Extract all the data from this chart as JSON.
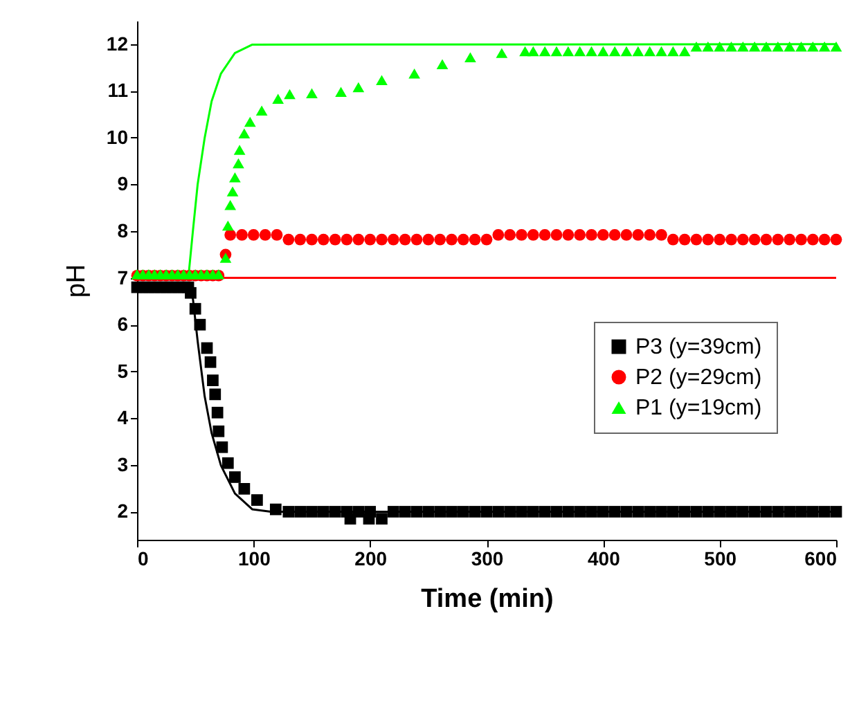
{
  "chart_data": {
    "type": "scatter",
    "xlabel": "Time (min)",
    "ylabel": "pH",
    "xlim": [
      0,
      600
    ],
    "xticks": [
      0,
      100,
      200,
      300,
      400,
      500,
      600
    ],
    "ylim": [
      1.4,
      12.5
    ],
    "yticks": [
      2,
      3,
      4,
      5,
      6,
      7,
      8,
      9,
      10,
      11,
      12
    ],
    "grid": false,
    "legend": "right",
    "series": [
      {
        "type": "line",
        "color": "#ff0000",
        "marker": "none",
        "line_style": "solid",
        "x": [
          0,
          600
        ],
        "values": [
          7.0,
          7.0
        ]
      },
      {
        "type": "line",
        "color": "#000000",
        "marker": "none",
        "line_style": "solid",
        "x": [
          0,
          45,
          48,
          52,
          58,
          64,
          72,
          84,
          99,
          115,
          600
        ],
        "values": [
          6.9,
          6.9,
          6.54,
          5.65,
          4.47,
          3.68,
          2.99,
          2.39,
          2.05,
          2.0,
          2.0
        ]
      },
      {
        "type": "line",
        "color": "#00ff00",
        "marker": "none",
        "line_style": "solid",
        "x": [
          0,
          44,
          48,
          52,
          58,
          64,
          72,
          84,
          99,
          600
        ],
        "values": [
          7.0,
          7.0,
          8.02,
          9.0,
          9.99,
          10.78,
          11.37,
          11.81,
          11.99,
          12.0
        ]
      },
      {
        "name": "P3 (y=39cm)",
        "color": "#000000",
        "marker": "square",
        "x": [
          0,
          5,
          10,
          15,
          20,
          25,
          30,
          35,
          40,
          44,
          46,
          50,
          54,
          60,
          63,
          65,
          67,
          69,
          70,
          73,
          78,
          84,
          92,
          103,
          119,
          130,
          140,
          150,
          160,
          170,
          180,
          183,
          190,
          199,
          200,
          210,
          220,
          230,
          240,
          250,
          260,
          270,
          280,
          290,
          300,
          310,
          320,
          330,
          340,
          350,
          360,
          370,
          380,
          390,
          400,
          410,
          420,
          430,
          440,
          450,
          460,
          470,
          480,
          490,
          500,
          510,
          520,
          530,
          540,
          550,
          560,
          570,
          580,
          590,
          600
        ],
        "values": [
          6.8,
          6.8,
          6.8,
          6.8,
          6.8,
          6.8,
          6.8,
          6.8,
          6.8,
          6.8,
          6.68,
          6.34,
          6.0,
          5.5,
          5.2,
          4.81,
          4.51,
          4.12,
          3.72,
          3.38,
          3.04,
          2.74,
          2.49,
          2.25,
          2.05,
          2.0,
          2.0,
          2.0,
          2.0,
          2.0,
          2.0,
          1.85,
          2.0,
          1.85,
          2.0,
          1.85,
          2.0,
          2.0,
          2.0,
          2.0,
          2.0,
          2.0,
          2.0,
          2.0,
          2.0,
          2.0,
          2.0,
          2.0,
          2.0,
          2.0,
          2.0,
          2.0,
          2.0,
          2.0,
          2.0,
          2.0,
          2.0,
          2.0,
          2.0,
          2.0,
          2.0,
          2.0,
          2.0,
          2.0,
          2.0,
          2.0,
          2.0,
          2.0,
          2.0,
          2.0,
          2.0,
          2.0,
          2.0,
          2.0,
          2.0
        ]
      },
      {
        "name": "P2 (y=29cm)",
        "color": "#ff0000",
        "marker": "circle",
        "x": [
          0,
          5,
          10,
          15,
          20,
          25,
          30,
          35,
          40,
          45,
          50,
          55,
          60,
          65,
          70,
          76,
          80,
          90,
          100,
          110,
          120,
          130,
          140,
          150,
          160,
          170,
          180,
          190,
          200,
          210,
          220,
          230,
          240,
          250,
          260,
          270,
          280,
          290,
          300,
          310,
          320,
          330,
          340,
          350,
          360,
          370,
          380,
          390,
          400,
          410,
          420,
          430,
          440,
          450,
          460,
          470,
          480,
          490,
          500,
          510,
          520,
          530,
          540,
          550,
          560,
          570,
          580,
          590,
          600
        ],
        "values": [
          7.05,
          7.05,
          7.05,
          7.05,
          7.05,
          7.05,
          7.05,
          7.05,
          7.05,
          7.05,
          7.05,
          7.05,
          7.05,
          7.05,
          7.05,
          7.5,
          7.92,
          7.92,
          7.92,
          7.92,
          7.92,
          7.82,
          7.82,
          7.82,
          7.82,
          7.82,
          7.82,
          7.82,
          7.82,
          7.82,
          7.82,
          7.82,
          7.82,
          7.82,
          7.82,
          7.82,
          7.82,
          7.82,
          7.82,
          7.92,
          7.92,
          7.92,
          7.92,
          7.92,
          7.92,
          7.92,
          7.92,
          7.92,
          7.92,
          7.92,
          7.92,
          7.92,
          7.92,
          7.92,
          7.82,
          7.82,
          7.82,
          7.82,
          7.82,
          7.82,
          7.82,
          7.82,
          7.82,
          7.82,
          7.82,
          7.82,
          7.82,
          7.82,
          7.82
        ]
      },
      {
        "name": "P1 (y=19cm)",
        "color": "#00ff00",
        "marker": "triangle",
        "x": [
          0,
          5,
          10,
          15,
          20,
          25,
          30,
          35,
          40,
          45,
          50,
          55,
          60,
          65,
          70,
          76,
          78,
          80,
          82,
          84,
          87,
          88,
          92,
          97,
          107,
          121,
          131,
          150,
          175,
          190,
          210,
          238,
          262,
          286,
          313,
          333,
          340,
          350,
          360,
          370,
          380,
          390,
          400,
          410,
          420,
          430,
          440,
          450,
          460,
          470,
          480,
          490,
          500,
          510,
          520,
          530,
          540,
          550,
          560,
          570,
          580,
          590,
          600
        ],
        "values": [
          7.08,
          7.08,
          7.08,
          7.08,
          7.08,
          7.08,
          7.08,
          7.08,
          7.08,
          7.08,
          7.08,
          7.08,
          7.08,
          7.08,
          7.08,
          7.43,
          8.12,
          8.56,
          8.85,
          9.15,
          9.45,
          9.74,
          10.09,
          10.34,
          10.58,
          10.83,
          10.93,
          10.95,
          10.98,
          11.08,
          11.23,
          11.37,
          11.57,
          11.72,
          11.81,
          11.85,
          11.85,
          11.85,
          11.85,
          11.85,
          11.85,
          11.85,
          11.85,
          11.85,
          11.85,
          11.85,
          11.85,
          11.85,
          11.85,
          11.85,
          11.95,
          11.95,
          11.95,
          11.95,
          11.95,
          11.95,
          11.95,
          11.95,
          11.95,
          11.95,
          11.95,
          11.95,
          11.95
        ]
      }
    ]
  }
}
